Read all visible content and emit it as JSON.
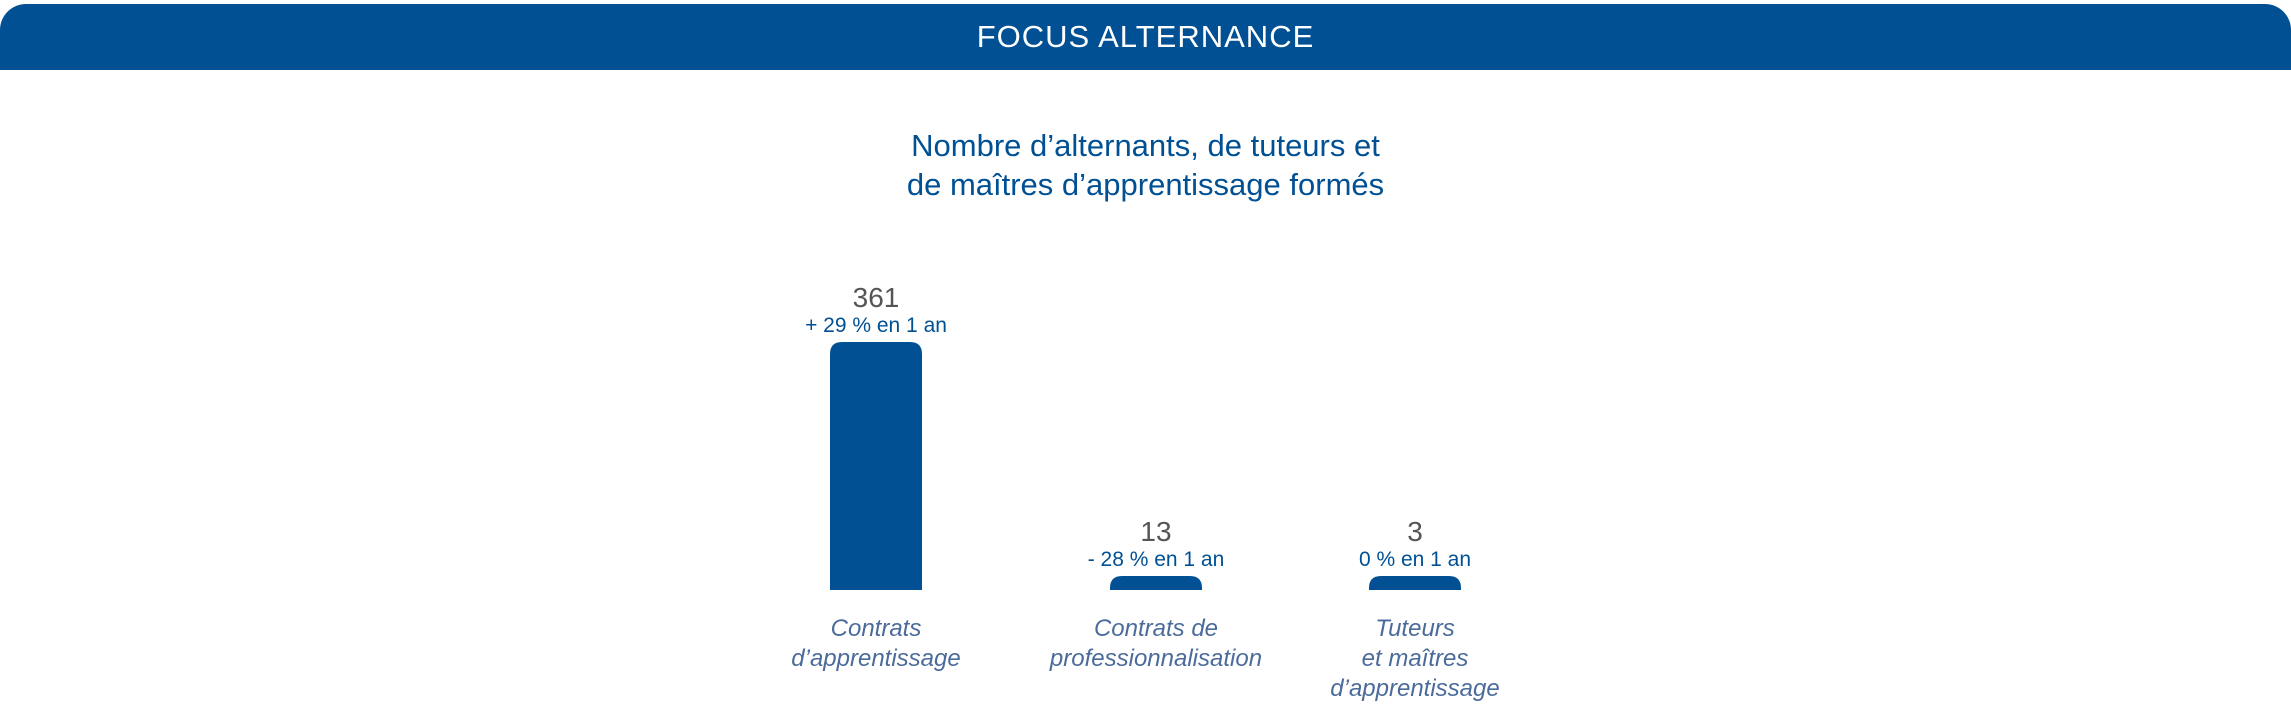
{
  "header": {
    "title": "FOCUS ALTERNANCE"
  },
  "colors": {
    "primary": "#005093",
    "value_text": "#555555",
    "category_text": "#4b6b9b"
  },
  "chart_data": {
    "type": "bar",
    "title_lines": [
      "Nombre d’alternants, de tuteurs et",
      "de maîtres d’apprentissage formés"
    ],
    "categories": [
      [
        "Contrats",
        "d’apprentissage"
      ],
      [
        "Contrats de",
        "professionnalisation"
      ],
      [
        "Tuteurs",
        "et maîtres",
        "d’apprentissage"
      ]
    ],
    "values": [
      361,
      13,
      3
    ],
    "value_labels": [
      "361",
      "13",
      "3"
    ],
    "change_labels": [
      "+ 29 % en 1 an",
      "- 28 % en 1 an",
      "0 % en 1 an"
    ],
    "grid": false,
    "legend": "none"
  }
}
